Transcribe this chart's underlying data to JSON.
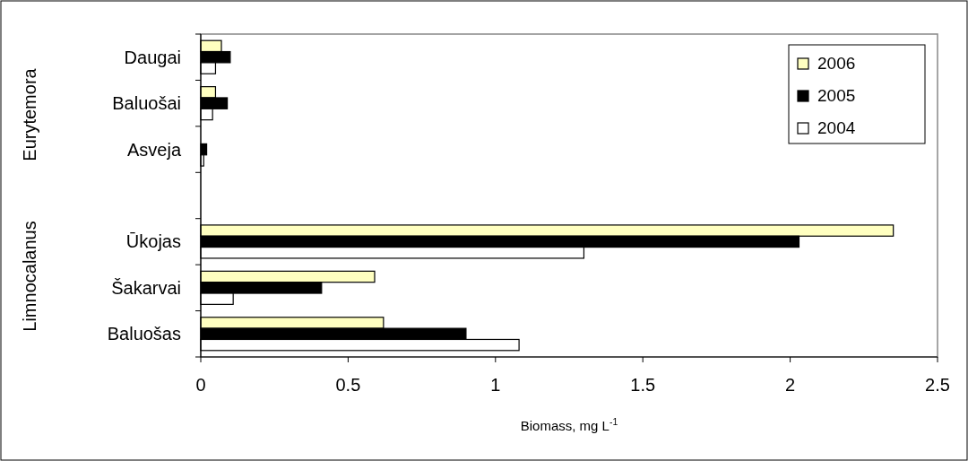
{
  "chart_data": {
    "type": "bar",
    "orientation": "horizontal",
    "xlabel": "Biomass, mg L$^{-1}$",
    "categories": [
      "Daugai",
      "Baluošai",
      "Asveja",
      null,
      "Ūkojas",
      "Šakarvai",
      "Baluošas"
    ],
    "series": [
      {
        "name": "2006",
        "color": "#ffffc0",
        "values": [
          0.07,
          0.05,
          0,
          null,
          2.35,
          0.59,
          0.62
        ]
      },
      {
        "name": "2005",
        "color": "#000000",
        "values": [
          0.1,
          0.09,
          0.02,
          null,
          2.03,
          0.41,
          0.9
        ]
      },
      {
        "name": "2004",
        "color": "#ffffff",
        "values": [
          0.05,
          0.04,
          0.01,
          null,
          1.3,
          0.11,
          1.08
        ]
      }
    ],
    "xlim": [
      0,
      2.5
    ],
    "xticks": [
      0,
      0.5,
      1,
      1.5,
      2,
      2.5
    ],
    "grid": false,
    "legend": "top right",
    "annotations": [
      "Eurytemora",
      "Limnocalanus"
    ]
  }
}
